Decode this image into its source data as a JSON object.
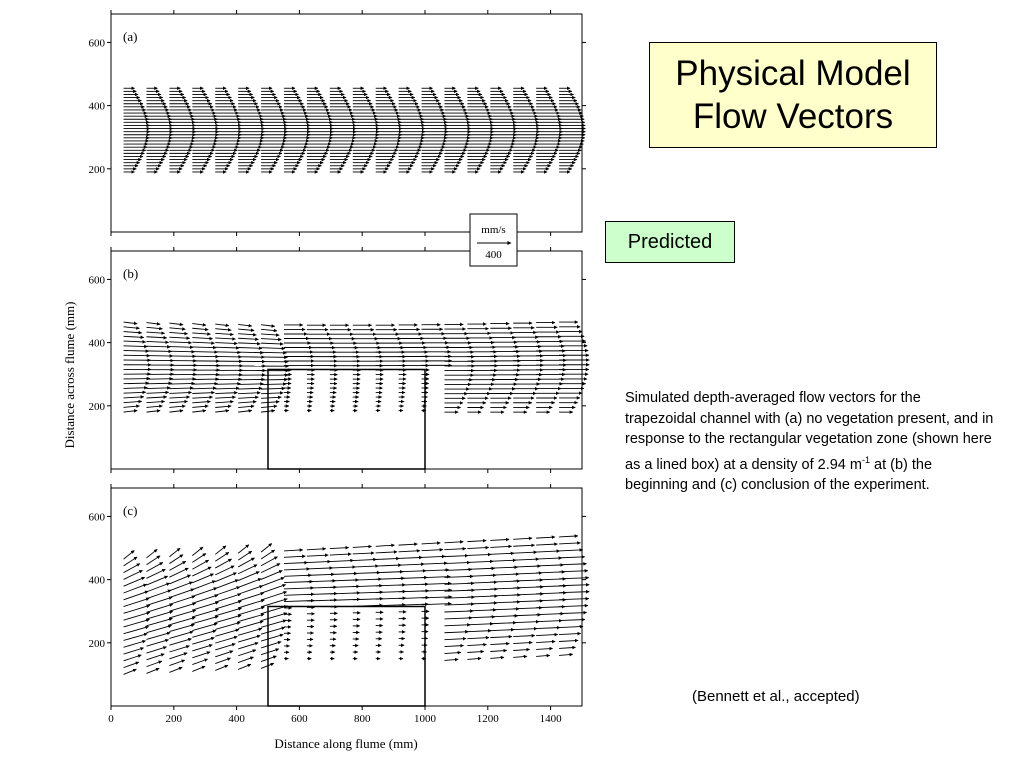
{
  "title": "Physical Model\nFlow Vectors",
  "predicted_label": "Predicted",
  "caption": {
    "before_sup": "Simulated depth-averaged flow vectors for the trapezoidal channel with (a) no vegetation present, and in response to the rectangular vegetation zone (shown here as a lined box) at a density of 2.94 m",
    "sup": "-1",
    "after_sup": " at (b) the beginning and (c) conclusion of the experiment."
  },
  "citation": "(Bennett et al., accepted)",
  "figure": {
    "xlabel": "Distance along flume (mm)",
    "ylabel": "Distance across flume (mm)",
    "x_ticks": [
      0,
      200,
      400,
      600,
      800,
      1000,
      1200,
      1400
    ],
    "y_ticks": [
      200,
      400,
      600
    ],
    "x_range": [
      0,
      1500
    ],
    "y_range": [
      0,
      690
    ],
    "scale_key": {
      "unit": "mm/s",
      "value": "400"
    },
    "vegetation_zone": {
      "x": [
        500,
        1000
      ],
      "y": [
        0,
        315
      ]
    },
    "panels": [
      {
        "label": "(a)"
      },
      {
        "label": "(b)"
      },
      {
        "label": "(c)"
      }
    ]
  }
}
